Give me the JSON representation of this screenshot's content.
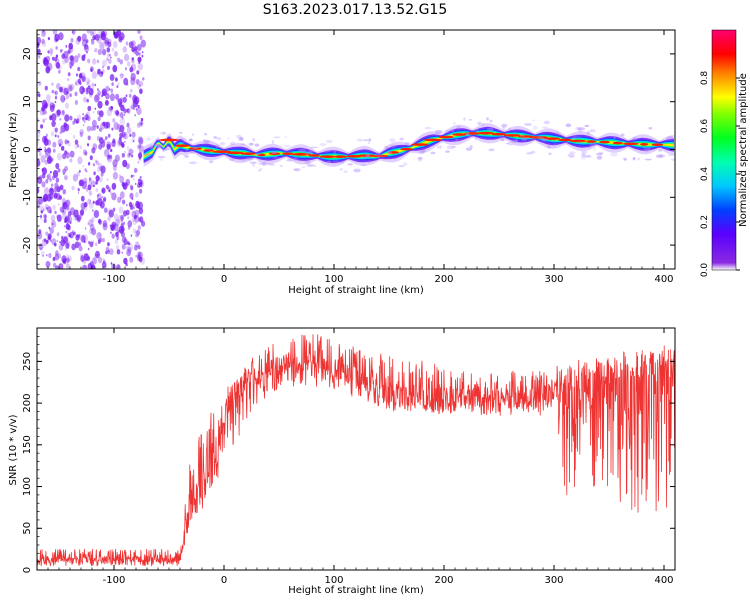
{
  "figure_title": "S163.2023.017.13.52.G15",
  "colors": {
    "snr_line": "#ee3333",
    "spectrogram_scatter": "#7a1ff0",
    "axis": "#000000"
  },
  "chart_data": [
    {
      "type": "heatmap",
      "title": "S163.2023.017.13.52.G15",
      "xlabel": "Height of straight line (km)",
      "ylabel": "Frequency (Hz)",
      "xlim": [
        -170,
        410
      ],
      "ylim": [
        -25,
        25
      ],
      "xticks": [
        -100,
        0,
        100,
        200,
        300,
        400
      ],
      "yticks": [
        -20,
        -10,
        0,
        10,
        20
      ],
      "colormap": "gist_rainbow (purple to red)",
      "colorbar": {
        "label": "Normalized spectral amplitude",
        "range": [
          0.0,
          1.0
        ],
        "ticks": [
          0.0,
          0.2,
          0.4,
          0.6,
          0.8
        ]
      },
      "noise_region_x": [
        -170,
        -73
      ],
      "ridge": {
        "x": [
          -73,
          -65,
          -60,
          -55,
          -50,
          -45,
          -40,
          -35,
          -30,
          -20,
          -10,
          0,
          10,
          20,
          30,
          40,
          50,
          60,
          70,
          80,
          90,
          100,
          110,
          120,
          130,
          140,
          150,
          160,
          170,
          180,
          190,
          200,
          210,
          220,
          230,
          240,
          250,
          260,
          270,
          280,
          290,
          300,
          310,
          320,
          330,
          340,
          350,
          360,
          370,
          380,
          390,
          400,
          410
        ],
        "y": [
          -1.5,
          -0.5,
          1.5,
          0.5,
          2.0,
          0.0,
          1.0,
          0.5,
          0.3,
          0.0,
          -0.3,
          -0.5,
          -0.7,
          -0.8,
          -1.2,
          -1.0,
          -0.8,
          -0.9,
          -1.0,
          -1.2,
          -1.5,
          -1.5,
          -1.5,
          -1.4,
          -1.3,
          -1.5,
          -0.8,
          -0.3,
          0.3,
          1.2,
          2.0,
          2.5,
          3.0,
          3.3,
          3.4,
          3.4,
          3.2,
          3.0,
          2.8,
          2.6,
          2.5,
          2.2,
          2.0,
          1.8,
          1.7,
          1.6,
          1.5,
          1.3,
          1.2,
          1.1,
          1.0,
          1.0,
          0.9
        ]
      }
    },
    {
      "type": "line",
      "xlabel": "Height of straight line (km)",
      "ylabel": "SNR (10 * v/v)",
      "xlim": [
        -170,
        410
      ],
      "ylim": [
        0,
        290
      ],
      "xticks": [
        -100,
        0,
        100,
        200,
        300,
        400
      ],
      "yticks": [
        0,
        50,
        100,
        150,
        200,
        250
      ],
      "series": [
        {
          "x": [
            -170,
            -150,
            -130,
            -110,
            -90,
            -70,
            -50,
            -40,
            -35,
            -30,
            -25,
            -20,
            -15,
            -10,
            -5,
            0,
            5,
            10,
            20,
            30,
            40,
            50,
            60,
            70,
            80,
            90,
            100,
            110,
            120,
            130,
            140,
            150,
            160,
            170,
            180,
            190,
            200,
            210,
            220,
            230,
            240,
            250,
            260,
            270,
            280,
            290,
            300,
            310,
            320,
            330,
            340,
            350,
            360,
            370,
            380,
            390,
            400,
            410
          ],
          "y": [
            12,
            13,
            12,
            14,
            12,
            13,
            12,
            12,
            50,
            80,
            100,
            95,
            120,
            140,
            165,
            175,
            200,
            210,
            225,
            235,
            240,
            245,
            248,
            250,
            245,
            242,
            240,
            238,
            230,
            225,
            222,
            218,
            212,
            210,
            208,
            206,
            204,
            205,
            206,
            207,
            208,
            207,
            206,
            205,
            204,
            205,
            206,
            210,
            214,
            218,
            220,
            222,
            224,
            226,
            226,
            228,
            230,
            232
          ],
          "noise_band": {
            "x": [
              -170,
              -40,
              -30,
              -20,
              0,
              20,
              40,
              60,
              80,
              100,
              150,
              200,
              250,
              300,
              305,
              350,
              360,
              410
            ],
            "low": [
              5,
              5,
              60,
              70,
              120,
              180,
              210,
              220,
              220,
              215,
              190,
              185,
              185,
              185,
              85,
              95,
              75,
              55
            ],
            "high": [
              25,
              25,
              140,
              170,
              215,
              250,
              270,
              280,
              285,
              275,
              260,
              245,
              240,
              240,
              250,
              255,
              262,
              265
            ]
          }
        }
      ]
    }
  ]
}
